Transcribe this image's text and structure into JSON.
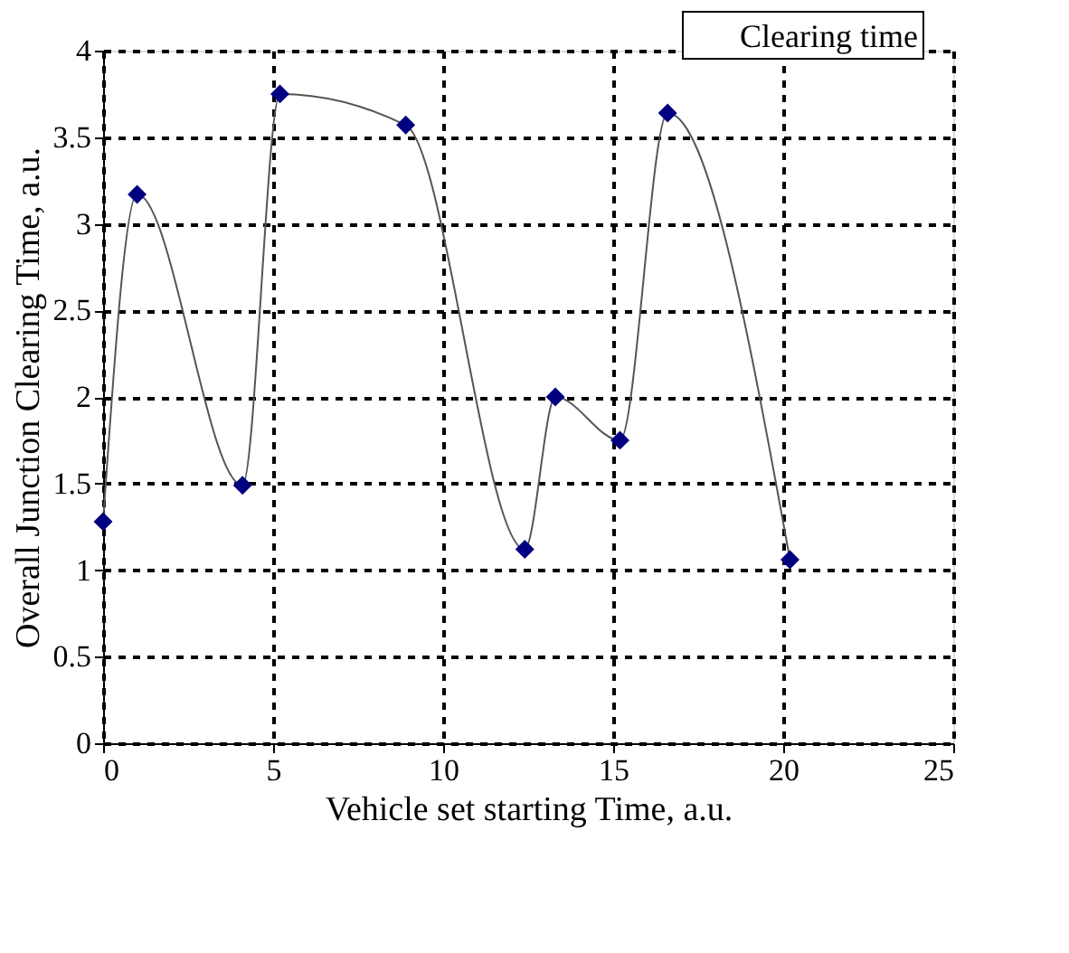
{
  "chart_data": {
    "type": "line",
    "xlabel": "Vehicle set starting Time, a.u.",
    "ylabel": "Overall Junction Clearing Time, a.u.",
    "x": [
      0,
      1.0,
      4.1,
      5.2,
      8.9,
      12.4,
      13.3,
      15.2,
      16.6,
      20.2
    ],
    "series": [
      {
        "name": "Clearing time",
        "color": "#000080",
        "values": [
          1.28,
          3.17,
          1.49,
          3.75,
          3.57,
          1.12,
          2.0,
          1.75,
          3.64,
          1.06
        ]
      }
    ],
    "xlim": [
      0,
      25
    ],
    "xticks": [
      0,
      5,
      10,
      15,
      20,
      25
    ],
    "ylim": [
      0,
      4
    ],
    "yticks": [
      0,
      0.5,
      1,
      1.5,
      2,
      2.5,
      3,
      3.5,
      4
    ],
    "grid": true,
    "legend": "top right",
    "marker": "diamond",
    "line_style": "solid"
  }
}
